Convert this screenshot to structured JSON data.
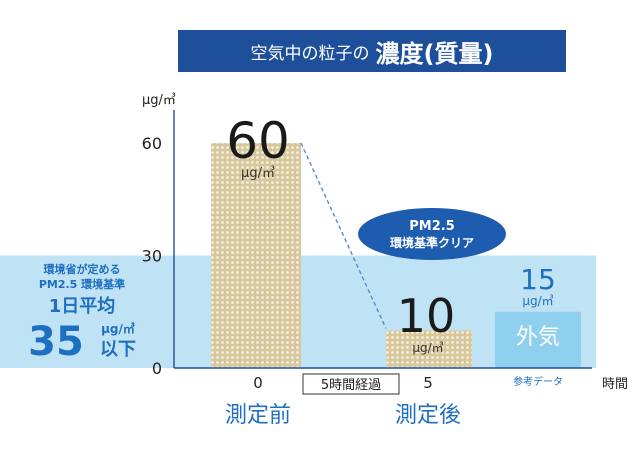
{
  "title": {
    "prefix": "空気中の粒子の",
    "main": "濃度(質量)"
  },
  "chart_data": {
    "type": "bar",
    "ylabel": "μg/㎥",
    "xlabel": "時間",
    "ylim": [
      0,
      75
    ],
    "yticks": [
      0,
      30,
      60
    ],
    "bars": [
      {
        "x": "0",
        "value": 60,
        "value_label": "60",
        "unit": "μg/㎥",
        "category": "測定前"
      },
      {
        "x": "5",
        "value": 10,
        "value_label": "10",
        "unit": "μg/㎥",
        "category": "測定後"
      }
    ],
    "reference_bar": {
      "value": 15,
      "value_label": "15",
      "unit": "μg/㎥",
      "label": "外気",
      "note": "参考データ"
    },
    "interval_label": "5時間経過",
    "standard": {
      "value": 35,
      "line1": "環境省が定める",
      "line2": "PM2.5 環境基準",
      "line3": "1日平均",
      "big_value": "35",
      "unit": "μg/㎥",
      "suffix": "以下"
    },
    "badge": {
      "line1": "PM2.5",
      "line2": "環境基準クリア"
    },
    "colors": {
      "band": "#bfe3f4",
      "bar": "#d8c79a",
      "dot": "#f4efe2",
      "ref_bar": "#8fd0ef",
      "axis": "#1e4f9a",
      "title_bg": "#1e4f9a",
      "accent_text": "#1f6fc0",
      "badge": "#1e5cb0"
    }
  }
}
